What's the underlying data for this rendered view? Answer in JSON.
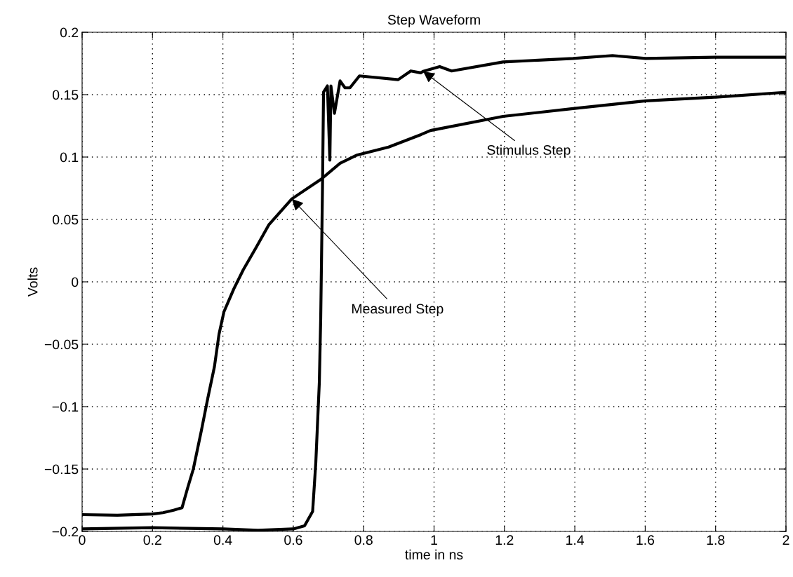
{
  "chart_data": {
    "type": "line",
    "title": "Step Waveform",
    "xlabel": "time in ns",
    "ylabel": "Volts",
    "series": [
      {
        "color": "#000000",
        "x": [
          0,
          0.1,
          0.2,
          0.23,
          0.26,
          0.284,
          0.3,
          0.316,
          0.339,
          0.357,
          0.376,
          0.389,
          0.403,
          0.431,
          0.458,
          0.495,
          0.531,
          0.596,
          0.678,
          0.733,
          0.779,
          0.871,
          0.963,
          0.99,
          1.196,
          1.395,
          1.601,
          1.8,
          1.996,
          2.0
        ],
        "values": [
          -0.1865,
          -0.187,
          -0.186,
          -0.185,
          -0.183,
          -0.181,
          -0.165,
          -0.15,
          -0.119,
          -0.0935,
          -0.068,
          -0.042,
          -0.024,
          -0.0057,
          0.0097,
          0.0278,
          0.0459,
          0.0665,
          0.082,
          0.095,
          0.1014,
          0.108,
          0.118,
          0.1213,
          0.1326,
          0.1388,
          0.145,
          0.148,
          0.1518,
          0.1518
        ]
      },
      {
        "color": "#000000",
        "x": [
          0,
          0.2,
          0.4,
          0.5,
          0.6,
          0.632,
          0.655,
          0.664,
          0.674,
          0.678,
          0.683,
          0.686,
          0.697,
          0.704,
          0.707,
          0.717,
          0.733,
          0.747,
          0.761,
          0.788,
          0.898,
          0.934,
          0.962,
          0.969,
          1.016,
          1.05,
          1.196,
          1.395,
          1.507,
          1.601,
          1.8,
          2.0
        ],
        "values": [
          -0.198,
          -0.197,
          -0.198,
          -0.199,
          -0.198,
          -0.1955,
          -0.184,
          -0.145,
          -0.081,
          -0.029,
          0.074,
          0.152,
          0.157,
          0.0975,
          0.157,
          0.135,
          0.161,
          0.1555,
          0.1555,
          0.165,
          0.162,
          0.169,
          0.1675,
          0.1687,
          0.1725,
          0.169,
          0.1762,
          0.179,
          0.1813,
          0.179,
          0.18,
          0.18
        ]
      }
    ],
    "annotations": [
      {
        "text": "Stimulus Step",
        "x": 0.969,
        "y": 0.1687
      },
      {
        "text": "Measured Step",
        "x": 0.596,
        "y": 0.0665
      }
    ],
    "xlim": [
      0,
      2
    ],
    "ylim": [
      -0.2,
      0.2
    ],
    "xticks": [
      0,
      0.2,
      0.4,
      0.6,
      0.8,
      1,
      1.2,
      1.4,
      1.6,
      1.8,
      2
    ],
    "yticks": [
      {
        "value": -0.2,
        "label": "−0.2"
      },
      {
        "value": -0.15,
        "label": "−0.15"
      },
      {
        "value": -0.1,
        "label": "−0.1"
      },
      {
        "value": -0.05,
        "label": "−0.05"
      },
      0,
      0.05,
      0.1,
      0.15,
      0.2
    ],
    "grid": true,
    "line_style": "solid",
    "marker": "none"
  }
}
